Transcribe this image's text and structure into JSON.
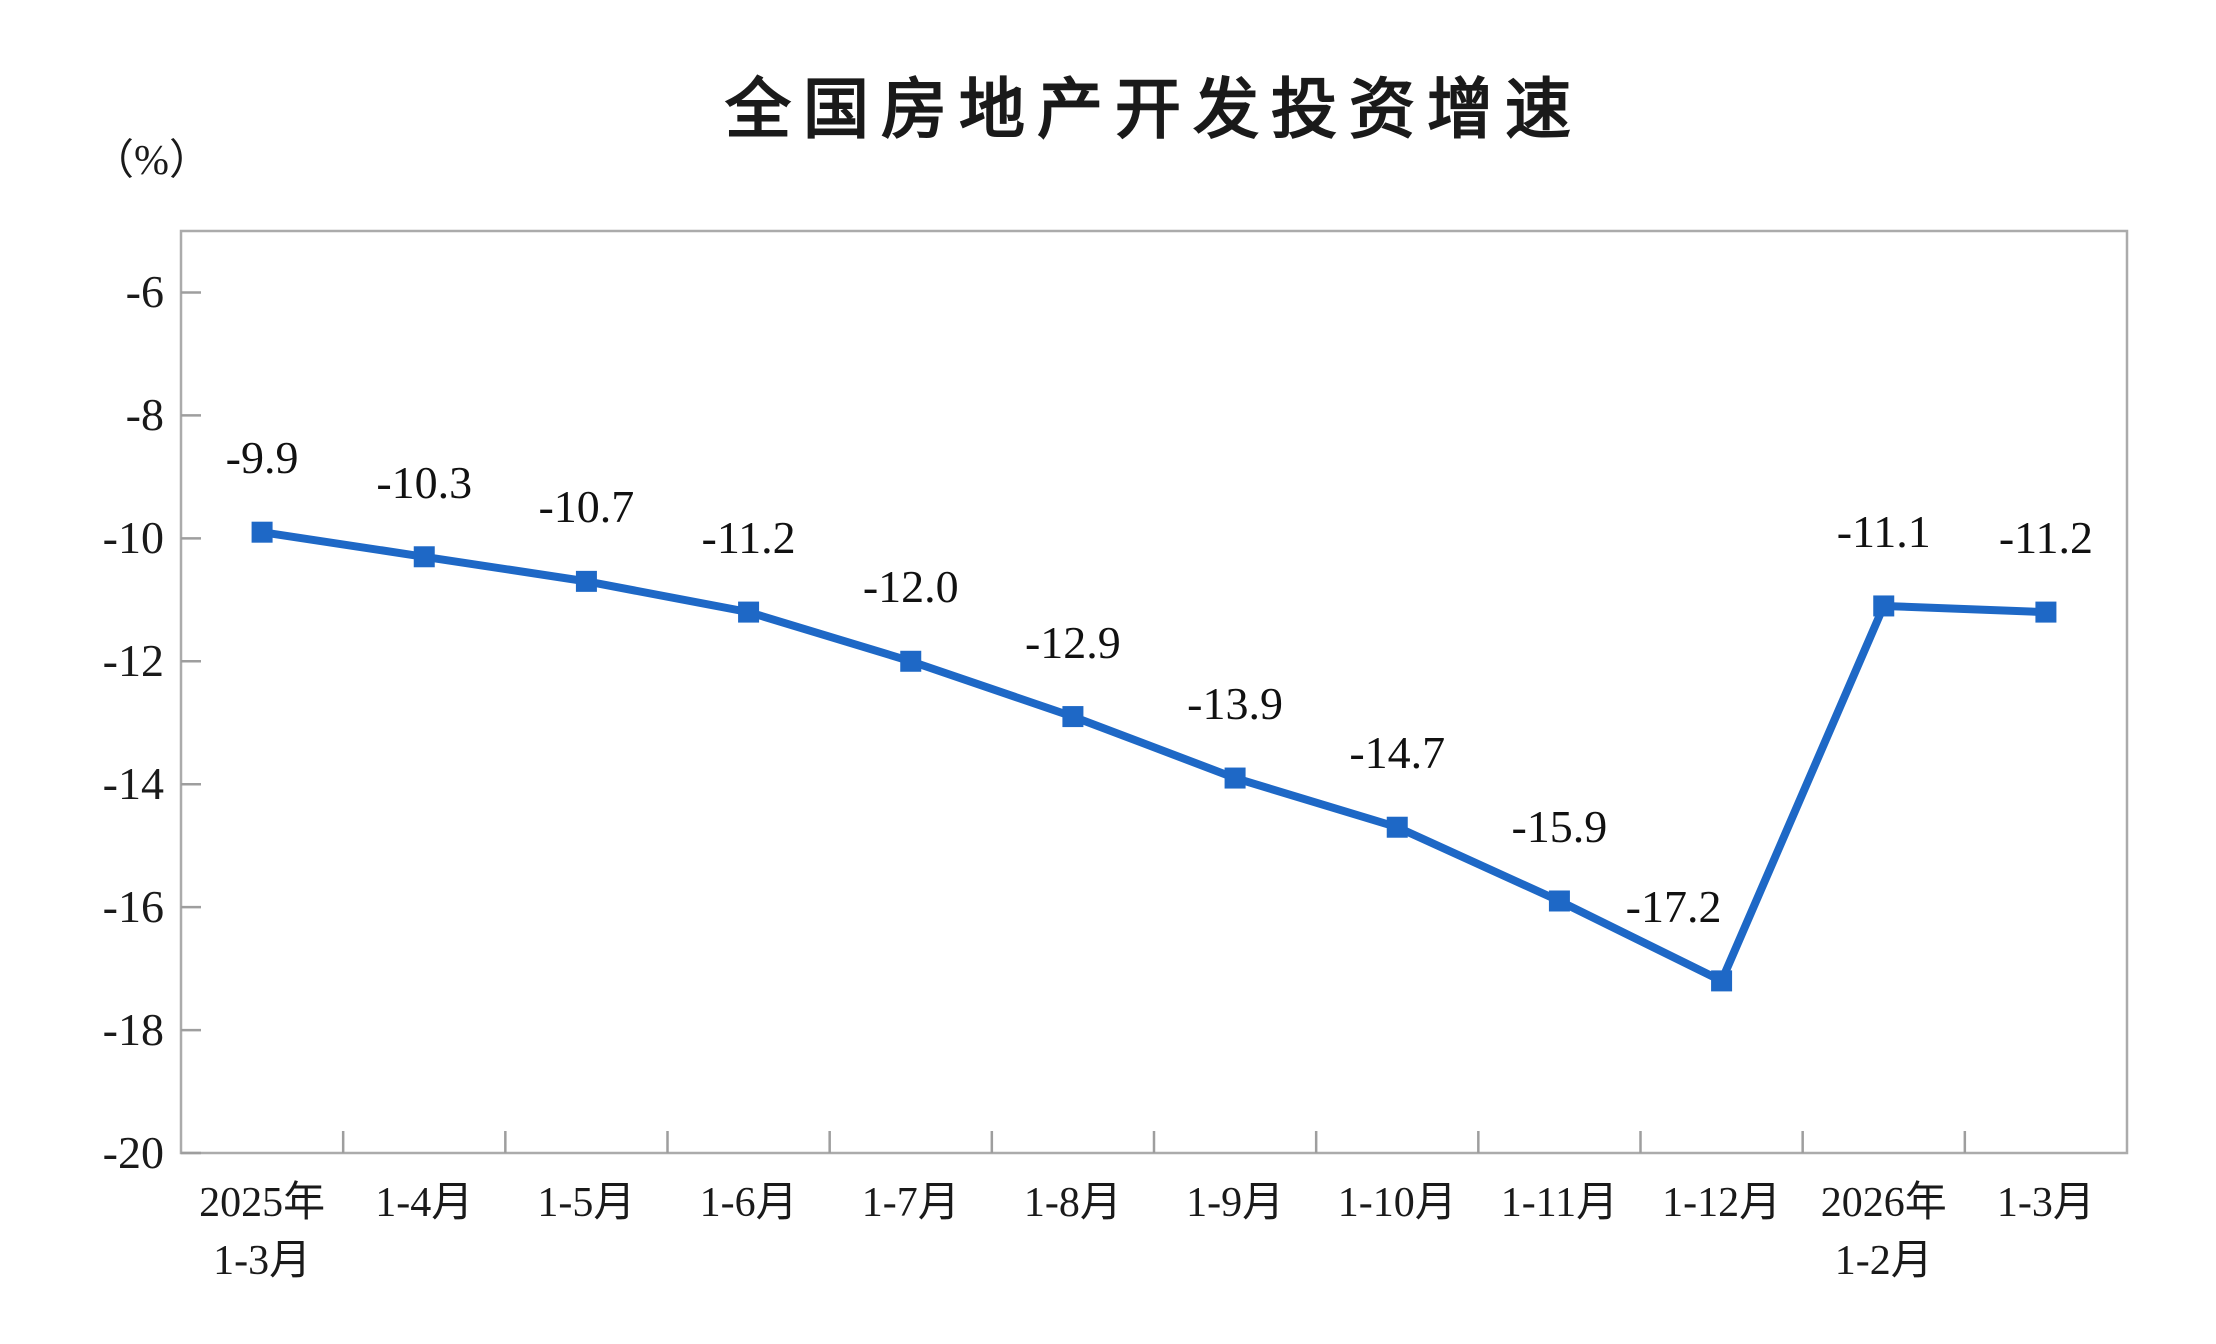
{
  "page": {
    "background": "#ffffff"
  },
  "chart_data": {
    "type": "line",
    "title": "全国房地产开发投资增速",
    "unit_label": "（%）",
    "categories": [
      [
        "2025年",
        "1-3月"
      ],
      [
        "1-4月"
      ],
      [
        "1-5月"
      ],
      [
        "1-6月"
      ],
      [
        "1-7月"
      ],
      [
        "1-8月"
      ],
      [
        "1-9月"
      ],
      [
        "1-10月"
      ],
      [
        "1-11月"
      ],
      [
        "1-12月"
      ],
      [
        "2026年",
        "1-2月"
      ],
      [
        "1-3月"
      ]
    ],
    "series": [
      {
        "name": "全国房地产开发投资增速",
        "values": [
          -9.9,
          -10.3,
          -10.7,
          -11.2,
          -12.0,
          -12.9,
          -13.9,
          -14.7,
          -15.9,
          -17.2,
          -11.1,
          -11.2
        ],
        "labels": [
          "-9.9",
          "-10.3",
          "-10.7",
          "-11.2",
          "-12.0",
          "-12.9",
          "-13.9",
          "-14.7",
          "-15.9",
          "-17.2",
          "-11.1",
          "-11.2"
        ]
      }
    ],
    "xlabel": "",
    "ylabel": "（%）",
    "y_ticks": [
      -6,
      -8,
      -10,
      -12,
      -14,
      -16,
      -18,
      -20
    ],
    "ylim": [
      -20,
      -5
    ],
    "grid": false,
    "legend": false,
    "marker": "square",
    "colors": {
      "line": "#1E68C6",
      "marker": "#1E68C6",
      "border": "#ABABAB",
      "tick": "#9E9E9E",
      "text": "#1a1a1a"
    }
  }
}
